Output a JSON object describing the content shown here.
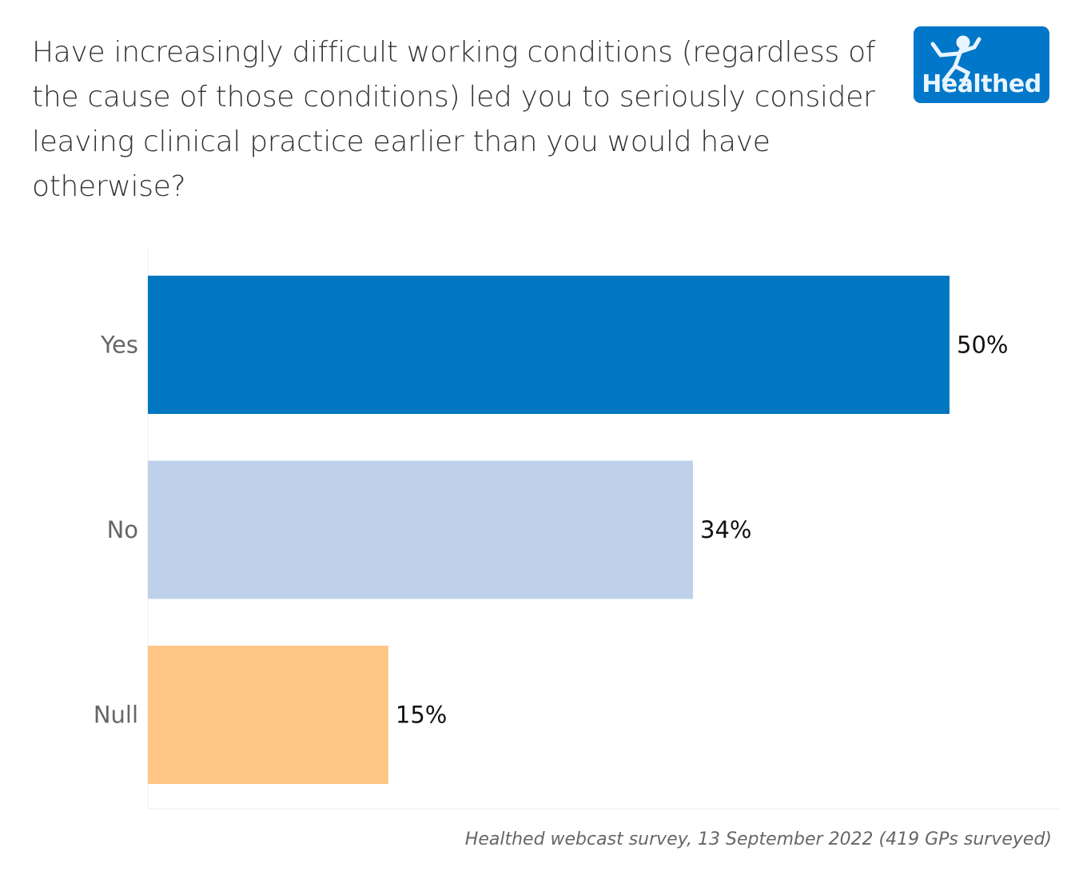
{
  "title": "Have increasingly difficult working conditions (regardless of the cause of those conditions) led you to seriously consider leaving clinical practice earlier than you would have otherwise?",
  "logo": {
    "text": "Healthed",
    "color": "#0077c8"
  },
  "footer": "Healthed webcast survey, 13 September 2022 (419 GPs surveyed)",
  "chart_data": {
    "type": "bar",
    "orientation": "horizontal",
    "categories": [
      "Yes",
      "No",
      "Null"
    ],
    "values": [
      50,
      34,
      15
    ],
    "value_labels": [
      "50%",
      "34%",
      "15%"
    ],
    "colors": [
      "#0077c0",
      "#bfd1ea",
      "#ffc685"
    ],
    "xlim": [
      0,
      56.9
    ],
    "grid": false,
    "xlabel": "",
    "ylabel": ""
  }
}
